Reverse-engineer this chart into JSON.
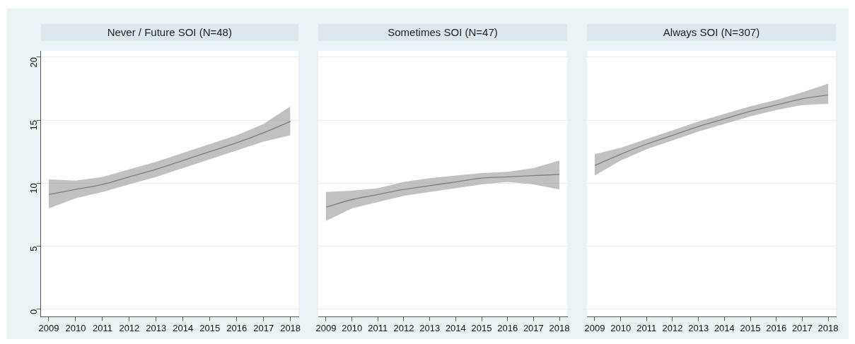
{
  "chart_data": [
    {
      "type": "line",
      "title": "Never / Future SOI (N=48)",
      "x": [
        2009,
        2010,
        2011,
        2012,
        2013,
        2014,
        2015,
        2016,
        2017,
        2018
      ],
      "xlim": [
        2008.7,
        2018.3
      ],
      "xticks": [
        2009,
        2010,
        2011,
        2012,
        2013,
        2014,
        2015,
        2016,
        2017,
        2018
      ],
      "ylim": [
        -0.6,
        20.5
      ],
      "yticks": [
        0,
        5,
        10,
        15,
        20
      ],
      "grid": "y",
      "series": [
        {
          "color": "#2e4a6b",
          "values": [
            9.1,
            9.5,
            9.9,
            10.5,
            11.1,
            11.8,
            12.5,
            13.2,
            14.0,
            14.9
          ],
          "lower": [
            8.0,
            8.8,
            9.3,
            9.9,
            10.5,
            11.2,
            11.9,
            12.6,
            13.3,
            13.8
          ],
          "upper": [
            10.3,
            10.2,
            10.5,
            11.1,
            11.7,
            12.4,
            13.1,
            13.8,
            14.7,
            16.1
          ]
        }
      ]
    },
    {
      "type": "line",
      "title": "Sometimes SOI (N=47)",
      "x": [
        2009,
        2010,
        2011,
        2012,
        2013,
        2014,
        2015,
        2016,
        2017,
        2018
      ],
      "xlim": [
        2008.7,
        2018.3
      ],
      "xticks": [
        2009,
        2010,
        2011,
        2012,
        2013,
        2014,
        2015,
        2016,
        2017,
        2018
      ],
      "ylim": [
        -0.6,
        20.5
      ],
      "yticks": [
        0,
        5,
        10,
        15,
        20
      ],
      "grid": "y",
      "tick_labels": "x",
      "series": [
        {
          "color": "#2e4a6b",
          "values": [
            8.1,
            8.7,
            9.1,
            9.5,
            9.8,
            10.1,
            10.4,
            10.5,
            10.6,
            10.7
          ],
          "lower": [
            7.0,
            8.0,
            8.5,
            9.0,
            9.3,
            9.6,
            9.9,
            10.1,
            9.9,
            9.5
          ],
          "upper": [
            9.3,
            9.4,
            9.6,
            10.1,
            10.4,
            10.6,
            10.8,
            10.9,
            11.2,
            11.8
          ]
        }
      ]
    },
    {
      "type": "line",
      "title": "Always SOI (N=307)",
      "x": [
        2009,
        2010,
        2011,
        2012,
        2013,
        2014,
        2015,
        2016,
        2017,
        2018
      ],
      "xlim": [
        2008.7,
        2018.3
      ],
      "xticks": [
        2009,
        2010,
        2011,
        2012,
        2013,
        2014,
        2015,
        2016,
        2017,
        2018
      ],
      "ylim": [
        -0.6,
        20.5
      ],
      "yticks": [
        0,
        5,
        10,
        15,
        20
      ],
      "grid": "y",
      "tick_labels": "x",
      "series": [
        {
          "color": "#2e4a6b",
          "values": [
            11.4,
            12.3,
            13.1,
            13.8,
            14.5,
            15.1,
            15.7,
            16.2,
            16.7,
            17.0
          ],
          "lower": [
            10.6,
            11.8,
            12.7,
            13.4,
            14.1,
            14.7,
            15.3,
            15.8,
            16.2,
            16.3
          ],
          "upper": [
            12.3,
            12.8,
            13.5,
            14.2,
            14.9,
            15.5,
            16.1,
            16.6,
            17.2,
            17.9
          ]
        }
      ]
    }
  ]
}
